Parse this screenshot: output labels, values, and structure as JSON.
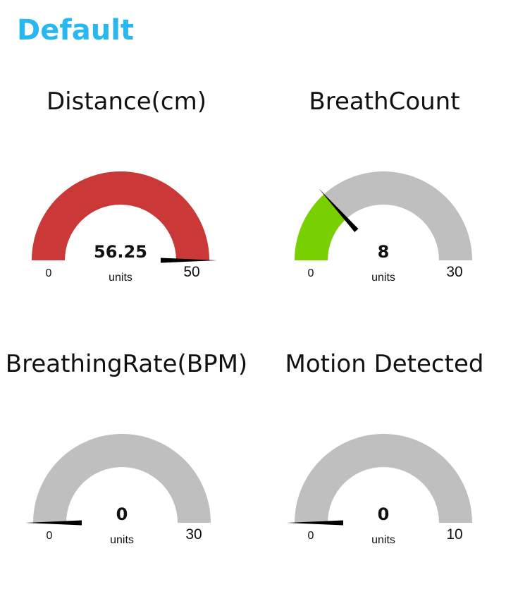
{
  "page": {
    "title": "Default"
  },
  "colors": {
    "track": "#bfbfbf",
    "needle": "#000000",
    "title": "#28b8ef"
  },
  "gauges": [
    {
      "title": "Distance(cm)",
      "value": 56.25,
      "value_label": "56.25",
      "units": "units",
      "min": 0,
      "max": 50,
      "min_label": "0",
      "max_label": "50",
      "fill_color": "#cb3838"
    },
    {
      "title": "BreathCount",
      "value": 8,
      "value_label": "8",
      "units": "units",
      "min": 0,
      "max": 30,
      "min_label": "0",
      "max_label": "30",
      "fill_color": "#78d000"
    },
    {
      "title": "BreathingRate(BPM)",
      "value": 0,
      "value_label": "0",
      "units": "units",
      "min": 0,
      "max": 30,
      "min_label": "0",
      "max_label": "30",
      "fill_color": "#78d000"
    },
    {
      "title": "Motion Detected",
      "value": 0,
      "value_label": "0",
      "units": "units",
      "min": 0,
      "max": 10,
      "min_label": "0",
      "max_label": "10",
      "fill_color": "#78d000"
    }
  ]
}
